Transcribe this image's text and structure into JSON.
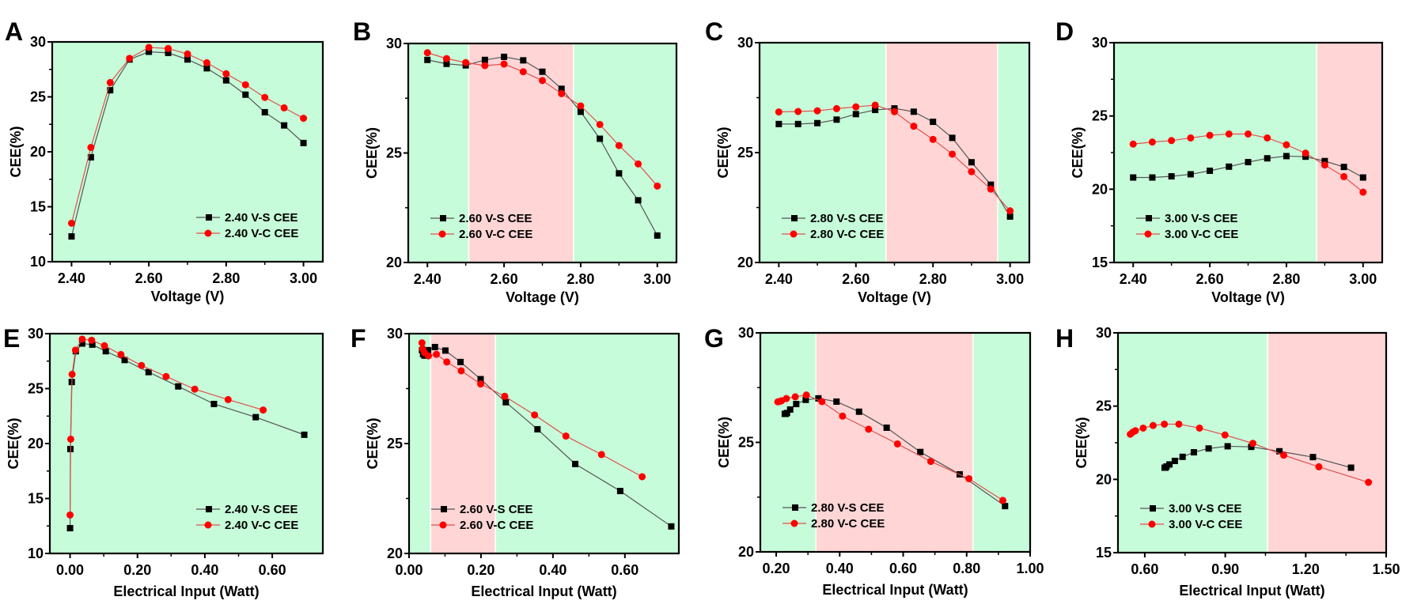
{
  "colors": {
    "green": "#c6fcd9",
    "red": "#ffd5d5",
    "series_s": "#000000",
    "series_c": "#ff0000",
    "line_s": "#555555",
    "line_c": "#e05050"
  },
  "chart_data": [
    {
      "panel": "A",
      "type": "line",
      "xlabel": "Voltage (V)",
      "ylabel": "CEE(%)",
      "xlim": [
        2.35,
        3.05
      ],
      "ylim": [
        10,
        30
      ],
      "xticks": [
        2.4,
        2.6,
        2.8,
        3.0
      ],
      "xtick_labels": [
        "2.40",
        "2.60",
        "2.80",
        "3.00"
      ],
      "yticks": [
        10,
        15,
        20,
        25,
        30
      ],
      "ytick_labels": [
        "10",
        "15",
        "20",
        "25",
        "30"
      ],
      "legend": "bottom-right",
      "regions": [
        {
          "from": 2.35,
          "to": 3.05,
          "color": "green"
        }
      ],
      "series": [
        {
          "name": "2.40 V-S CEE",
          "marker": "square",
          "x": [
            2.4,
            2.45,
            2.5,
            2.55,
            2.6,
            2.65,
            2.7,
            2.75,
            2.8,
            2.85,
            2.9,
            2.95,
            3.0
          ],
          "y": [
            12.3,
            19.5,
            25.6,
            28.4,
            29.1,
            29.0,
            28.4,
            27.6,
            26.5,
            25.2,
            23.6,
            22.4,
            20.8
          ]
        },
        {
          "name": "2.40 V-C CEE",
          "marker": "circle",
          "x": [
            2.4,
            2.45,
            2.5,
            2.55,
            2.6,
            2.65,
            2.7,
            2.75,
            2.8,
            2.85,
            2.9,
            2.95,
            3.0
          ],
          "y": [
            13.5,
            20.4,
            26.3,
            28.5,
            29.5,
            29.4,
            28.9,
            28.1,
            27.1,
            26.1,
            24.95,
            24.0,
            23.05
          ]
        }
      ]
    },
    {
      "panel": "B",
      "type": "line",
      "xlabel": "Voltage (V)",
      "ylabel": "CEE(%)",
      "xlim": [
        2.35,
        3.05
      ],
      "ylim": [
        20,
        30
      ],
      "xticks": [
        2.4,
        2.6,
        2.8,
        3.0
      ],
      "xtick_labels": [
        "2.40",
        "2.60",
        "2.80",
        "3.00"
      ],
      "yticks": [
        20,
        25,
        30
      ],
      "ytick_labels": [
        "20",
        "25",
        "30"
      ],
      "legend": "bottom-left",
      "regions": [
        {
          "from": 2.35,
          "to": 2.508,
          "color": "green"
        },
        {
          "from": 2.508,
          "to": 2.781,
          "color": "red"
        },
        {
          "from": 2.781,
          "to": 3.05,
          "color": "green"
        }
      ],
      "series": [
        {
          "name": "2.60 V-S CEE",
          "marker": "square",
          "x": [
            2.4,
            2.45,
            2.5,
            2.55,
            2.6,
            2.65,
            2.7,
            2.75,
            2.8,
            2.85,
            2.9,
            2.95,
            3.0
          ],
          "y": [
            29.25,
            29.07,
            29.0,
            29.25,
            29.39,
            29.23,
            28.71,
            27.93,
            26.88,
            25.65,
            24.07,
            22.84,
            21.23
          ]
        },
        {
          "name": "2.60 V-C CEE",
          "marker": "circle",
          "x": [
            2.4,
            2.45,
            2.5,
            2.55,
            2.6,
            2.65,
            2.7,
            2.75,
            2.8,
            2.85,
            2.9,
            2.95,
            3.0
          ],
          "y": [
            29.58,
            29.31,
            29.13,
            28.99,
            29.06,
            28.71,
            28.31,
            27.71,
            27.15,
            26.3,
            25.34,
            24.5,
            23.49
          ]
        }
      ]
    },
    {
      "panel": "C",
      "type": "line",
      "xlabel": "Voltage (V)",
      "ylabel": "CEE(%)",
      "xlim": [
        2.35,
        3.05
      ],
      "ylim": [
        20,
        30
      ],
      "xticks": [
        2.4,
        2.6,
        2.8,
        3.0
      ],
      "xtick_labels": [
        "2.40",
        "2.60",
        "2.80",
        "3.00"
      ],
      "yticks": [
        20,
        25,
        30
      ],
      "ytick_labels": [
        "20",
        "25",
        "30"
      ],
      "legend": "bottom-left",
      "regions": [
        {
          "from": 2.35,
          "to": 2.678,
          "color": "green"
        },
        {
          "from": 2.678,
          "to": 2.968,
          "color": "red"
        },
        {
          "from": 2.968,
          "to": 3.05,
          "color": "green"
        }
      ],
      "series": [
        {
          "name": "2.80 V-S CEE",
          "marker": "square",
          "x": [
            2.4,
            2.45,
            2.5,
            2.55,
            2.6,
            2.65,
            2.7,
            2.75,
            2.8,
            2.85,
            2.9,
            2.95,
            3.0
          ],
          "y": [
            26.3,
            26.3,
            26.34,
            26.5,
            26.75,
            26.94,
            27.01,
            26.86,
            26.4,
            25.67,
            24.56,
            23.54,
            22.09
          ]
        },
        {
          "name": "2.80 V-C CEE",
          "marker": "circle",
          "x": [
            2.4,
            2.45,
            2.5,
            2.55,
            2.6,
            2.65,
            2.7,
            2.75,
            2.8,
            2.85,
            2.9,
            2.95,
            3.0
          ],
          "y": [
            26.85,
            26.87,
            26.9,
            27.0,
            27.08,
            27.16,
            26.86,
            26.2,
            25.6,
            24.93,
            24.13,
            23.34,
            22.35
          ]
        }
      ]
    },
    {
      "panel": "D",
      "type": "line",
      "xlabel": "Voltage (V)",
      "ylabel": "CEE(%)",
      "xlim": [
        2.35,
        3.05
      ],
      "ylim": [
        15,
        30
      ],
      "xticks": [
        2.4,
        2.6,
        2.8,
        3.0
      ],
      "xtick_labels": [
        "2.40",
        "2.60",
        "2.80",
        "3.00"
      ],
      "yticks": [
        15,
        20,
        25,
        30
      ],
      "ytick_labels": [
        "15",
        "20",
        "25",
        "30"
      ],
      "legend": "bottom-left",
      "regions": [
        {
          "from": 2.35,
          "to": 2.879,
          "color": "green"
        },
        {
          "from": 2.879,
          "to": 3.05,
          "color": "red"
        }
      ],
      "series": [
        {
          "name": "3.00 V-S CEE",
          "marker": "square",
          "x": [
            2.4,
            2.45,
            2.5,
            2.55,
            2.6,
            2.65,
            2.7,
            2.75,
            2.8,
            2.85,
            2.9,
            2.95,
            3.0
          ],
          "y": [
            20.8,
            20.8,
            20.88,
            21.02,
            21.26,
            21.54,
            21.85,
            22.11,
            22.26,
            22.22,
            21.92,
            21.52,
            20.8
          ]
        },
        {
          "name": "3.00 V-C CEE",
          "marker": "circle",
          "x": [
            2.4,
            2.45,
            2.5,
            2.55,
            2.6,
            2.65,
            2.7,
            2.75,
            2.8,
            2.85,
            2.9,
            2.95,
            3.0
          ],
          "y": [
            23.08,
            23.22,
            23.32,
            23.5,
            23.68,
            23.77,
            23.77,
            23.5,
            23.03,
            22.46,
            21.65,
            20.86,
            19.8
          ]
        }
      ]
    },
    {
      "panel": "E",
      "type": "line",
      "xlabel": "Electrical Input (Watt)",
      "ylabel": "CEE(%)",
      "xlim": [
        -0.06,
        0.75
      ],
      "ylim": [
        10,
        30
      ],
      "xticks": [
        0,
        0.2,
        0.4,
        0.6
      ],
      "xtick_labels": [
        "0.00",
        "0.20",
        "0.40",
        "0.60"
      ],
      "yticks": [
        10,
        15,
        20,
        25,
        30
      ],
      "ytick_labels": [
        "10",
        "15",
        "20",
        "25",
        "30"
      ],
      "legend": "bottom-right",
      "regions": [
        {
          "from": -0.06,
          "to": 0.75,
          "color": "green"
        }
      ],
      "series": [
        {
          "name": "2.40 V-S CEE",
          "marker": "square",
          "x": [
            0.0,
            0.001,
            0.005,
            0.017,
            0.036,
            0.066,
            0.106,
            0.162,
            0.233,
            0.321,
            0.427,
            0.551,
            0.695
          ],
          "y": [
            12.3,
            19.5,
            25.6,
            28.4,
            29.1,
            29.0,
            28.4,
            27.6,
            26.5,
            25.2,
            23.6,
            22.4,
            20.8
          ]
        },
        {
          "name": "2.40 V-C CEE",
          "marker": "circle",
          "x": [
            0.0,
            0.002,
            0.006,
            0.016,
            0.036,
            0.064,
            0.102,
            0.151,
            0.212,
            0.285,
            0.37,
            0.469,
            0.573
          ],
          "y": [
            13.5,
            20.4,
            26.3,
            28.5,
            29.5,
            29.4,
            28.9,
            28.1,
            27.1,
            26.1,
            24.95,
            24.0,
            23.05
          ]
        }
      ]
    },
    {
      "panel": "F",
      "type": "line",
      "xlabel": "Electrical Input (Watt)",
      "ylabel": "CEE(%)",
      "xlim": [
        0,
        0.75
      ],
      "ylim": [
        20,
        30
      ],
      "xticks": [
        0,
        0.2,
        0.4,
        0.6
      ],
      "xtick_labels": [
        "0.00",
        "0.20",
        "0.40",
        "0.60"
      ],
      "yticks": [
        20,
        25,
        30
      ],
      "ytick_labels": [
        "20",
        "25",
        "30"
      ],
      "legend": "bottom-left",
      "regions": [
        {
          "from": 0,
          "to": 0.06,
          "color": "green"
        },
        {
          "from": 0.06,
          "to": 0.24,
          "color": "red"
        },
        {
          "from": 0.24,
          "to": 0.75,
          "color": "green"
        }
      ],
      "series": [
        {
          "name": "2.60 V-S CEE",
          "marker": "square",
          "x": [
            0.036,
            0.039,
            0.043,
            0.053,
            0.072,
            0.101,
            0.143,
            0.199,
            0.269,
            0.357,
            0.462,
            0.587,
            0.729
          ],
          "y": [
            29.25,
            29.07,
            29.0,
            29.25,
            29.39,
            29.23,
            28.71,
            27.93,
            26.88,
            25.65,
            24.07,
            22.84,
            21.23
          ]
        },
        {
          "name": "2.60 V-C CEE",
          "marker": "circle",
          "x": [
            0.036,
            0.038,
            0.043,
            0.054,
            0.076,
            0.105,
            0.145,
            0.199,
            0.266,
            0.349,
            0.436,
            0.535,
            0.648
          ],
          "y": [
            29.58,
            29.31,
            29.13,
            28.99,
            29.06,
            28.71,
            28.31,
            27.71,
            27.15,
            26.3,
            25.34,
            24.5,
            23.49
          ]
        }
      ]
    },
    {
      "panel": "G",
      "type": "line",
      "xlabel": "Electrical Input (Watt)",
      "ylabel": "CEE(%)",
      "xlim": [
        0.15,
        1.0
      ],
      "ylim": [
        20,
        30
      ],
      "xticks": [
        0.2,
        0.4,
        0.6,
        0.8,
        1.0
      ],
      "xtick_labels": [
        "0.20",
        "0.40",
        "0.60",
        "0.80",
        "1.00"
      ],
      "yticks": [
        20,
        25,
        30
      ],
      "ytick_labels": [
        "20",
        "25",
        "30"
      ],
      "legend": "bottom-left",
      "regions": [
        {
          "from": 0.15,
          "to": 0.325,
          "color": "green"
        },
        {
          "from": 0.325,
          "to": 0.82,
          "color": "red"
        },
        {
          "from": 0.82,
          "to": 1.0,
          "color": "green"
        }
      ],
      "series": [
        {
          "name": "2.80 V-S CEE",
          "marker": "square",
          "x": [
            0.227,
            0.23,
            0.234,
            0.244,
            0.263,
            0.293,
            0.333,
            0.39,
            0.461,
            0.548,
            0.654,
            0.778,
            0.921
          ],
          "y": [
            26.3,
            26.3,
            26.34,
            26.5,
            26.75,
            26.94,
            27.01,
            26.86,
            26.4,
            25.67,
            24.56,
            23.54,
            22.09
          ]
        },
        {
          "name": "2.80 V-C CEE",
          "marker": "circle",
          "x": [
            0.205,
            0.211,
            0.217,
            0.232,
            0.26,
            0.295,
            0.344,
            0.409,
            0.491,
            0.582,
            0.687,
            0.807,
            0.914
          ],
          "y": [
            26.85,
            26.87,
            26.9,
            27.0,
            27.08,
            27.16,
            26.86,
            26.2,
            25.6,
            24.93,
            24.13,
            23.34,
            22.35
          ]
        }
      ]
    },
    {
      "panel": "H",
      "type": "line",
      "xlabel": "Electrical Input (Watt)",
      "ylabel": "CEE(%)",
      "xlim": [
        0.5,
        1.5
      ],
      "ylim": [
        15,
        30
      ],
      "xticks": [
        0.6,
        0.9,
        1.2,
        1.5
      ],
      "xtick_labels": [
        "0.60",
        "0.90",
        "1.20",
        "1.50"
      ],
      "yticks": [
        15,
        20,
        25,
        30
      ],
      "ytick_labels": [
        "15",
        "20",
        "25",
        "30"
      ],
      "legend": "bottom-left",
      "regions": [
        {
          "from": 0.5,
          "to": 1.058,
          "color": "green"
        },
        {
          "from": 1.058,
          "to": 1.5,
          "color": "red"
        }
      ],
      "series": [
        {
          "name": "3.00 V-S CEE",
          "marker": "square",
          "x": [
            0.674,
            0.677,
            0.681,
            0.692,
            0.712,
            0.741,
            0.783,
            0.838,
            0.909,
            0.997,
            1.102,
            1.227,
            1.369
          ],
          "y": [
            20.8,
            20.8,
            20.88,
            21.02,
            21.26,
            21.54,
            21.85,
            22.11,
            22.26,
            22.22,
            21.92,
            21.52,
            20.8
          ]
        },
        {
          "name": "3.00 V-C CEE",
          "marker": "circle",
          "x": [
            0.546,
            0.555,
            0.565,
            0.594,
            0.631,
            0.673,
            0.727,
            0.804,
            0.899,
            1.003,
            1.118,
            1.249,
            1.434
          ],
          "y": [
            23.08,
            23.22,
            23.32,
            23.5,
            23.68,
            23.77,
            23.77,
            23.5,
            23.03,
            22.46,
            21.65,
            20.86,
            19.8
          ]
        }
      ]
    }
  ]
}
